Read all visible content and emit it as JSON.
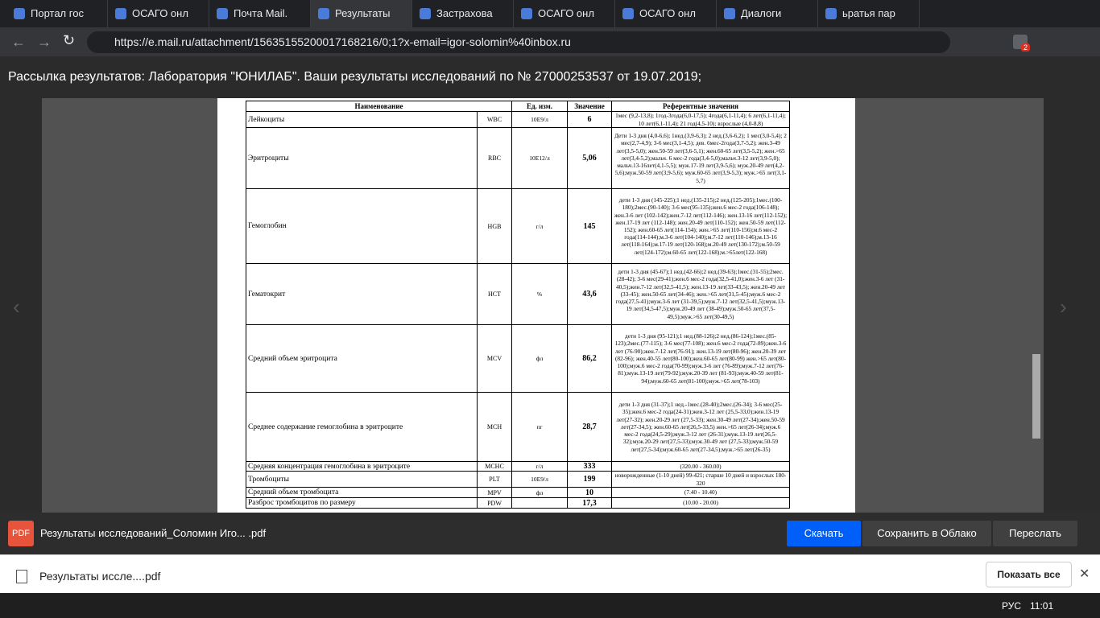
{
  "tabs": [
    "Портал гос",
    "ОСАГО онл",
    "Почта Mail.",
    "Результаты",
    "Застрахова",
    "ОСАГО онл",
    "ОСАГО онл",
    "Диалоги",
    "ьратья пар"
  ],
  "url": "https://e.mail.ru/attachment/15635155200017168216/0;1?x-email=igor-solomin%40inbox.ru",
  "extension_badge": "2",
  "subject": "Рассылка результатов: Лаборатория \"ЮНИЛАБ\". Ваши результаты исследований по № 27000253537 от 19.07.2019;",
  "table": {
    "header": [
      "Наименование",
      "Ед. изм.",
      "Значение",
      "Референтные значения"
    ],
    "rows": [
      [
        "Лейкоциты",
        "WBC",
        "10E9/л",
        "6",
        "1мес (9,2-13,8); 1год-3года(6,0-17,5); 4года(6,1-11,4); 6 лет(6,1-11,4); 10 лет(6,1-11,4); 21 год(4,5-10); взрослые (4,0-8,8)"
      ],
      [
        "Эритроциты",
        "RBC",
        "10E12/л",
        "5,06",
        "Дети 1-3 дня (4,0-6,6); 1нед.(3,9-6,3); 2 нед.(3,6-6,2); 1 мес(3,0-5,4); 2 мес(2,7-4,9); 3-6 мес(3,1-4,5); дев. 6мес-2года(3,7-5,2); жен.3-49 лет(3,5-5,0); жен.50-59 лет(3,6-5,1); жен.60-65 лет(3,5-5,2); жен.>65 лет(3,4-5,2);мальч. 6 мес-2 года(3,4-5,0);мальч.3-12 лет(3,9-5,0); мальч.13-16лет(4,1-5,5); муж.17-19 лет(3,9-5,6); муж.20-49 лет(4,2-5,6);муж.50-59 лет(3,9-5,6); муж.60-65 лет(3,9-5,3); муж.>65 лет(3,1-5,7)"
      ],
      [
        "Гемоглобин",
        "HGB",
        "г/л",
        "145",
        "дети 1-3 дня (145-225);1 нед.(135-215);2 нед.(125-205);1мес.(100-180);2мес.(90-140); 3-6 мес(95-135);жен.6 мес-2 года(106-148); жен.3-6 лет (102-142);жен.7-12 лет(112-146); жен.13-16 лет(112-152); жен.17-19 лет (112-148); жен.20-49 лет(110-152); жен.50-59 лет(112-152); жен.60-65 лет(114-154); жен.>65 лет(110-156);м.6 мес-2 года(114-144);м.3-6 лет(104-140);м.7-12 лет(110-146);м.13-16 лет(118-164);м.17-19 лет(120-168);м.20-49 лет(130-172);м.50-59 лет(124-172);м.60-65 лет(122-168);м.>65лет(122-168)"
      ],
      [
        "Гематокрит",
        "HCT",
        "%",
        "43,6",
        "дети 1-3 дня (45-67);1 нед.(42-66);2 нед.(39-63);1мес.(31-55);2мес.(28-42); 3-6 мес(29-41);жен.6 мес-2 года(32,5-41,0);жен.3-6 лет (31-40,5);жен.7-12 лет(32,5-41,5); жен.13-19 лет(33-43,5); жен.20-49 лет (33-45); жен.50-65 лет(34-46); жен.>65 лет(31,5-45);муж.6 мес-2 года(27,5-41);муж.3-6 лет (31-39,5);муж.7-12 лет(32,5-41,5);муж.13-19 лет(34,5-47,5);муж.20-49 лет (38-49);муж.50-65 лет(37,5-49,5);муж.>65 лет(30-49,5)"
      ],
      [
        "Средний объем эритроцита",
        "MCV",
        "фл",
        "86,2",
        "дети 1-3 дня (95-121);1 нед.(88-126);2 нед.(86-124);1мес.(85-123);2мес.(77-115); 3-6 мес(77-108); жен.6 мес-2 года(72-89);жен.3-6 лет (76-90);жен.7-12 лет(76-91); жен.13-19 лет(80-96); жен.20-39 лет (82-96); жен.40-55 лет(80-100);жен.60-65 лет(80-99) жен.>65 лет(80-100);муж.6 мес-2 года(70-99);муж.3-6 лет (76-89);муж.7-12 лет(76-81);муж.13-19 лет(79-92);муж.20-39 лет (81-93);муж.40-59 лет(81-94);муж.60-65 лет(81-100);муж.>65 лет(78-103)"
      ],
      [
        "Среднее содержание гемоглобина в эритроците",
        "MCH",
        "пг",
        "28,7",
        "дети 1-3 дня (31-37);1 нед.-1мес.(28-40);2мес.(26-34); 3-6 мес(25-35);жен.6 мес-2 года(24-31);жен.3-12 лет (25,5-33,0);жен.13-19 лет(27-32); жен.20-29 лет (27,5-33); жен.30-49 лет(27-34);жен.50-59 лет(27-34,5); жен.60-65 лет(26,5-33,5) жен.>65 лет(26-34);муж.6 мес-2 года(24,5-29);муж.3-12 лет (26-31);муж.13-19 лет(26,5-32);муж.20-29 лет(27,5-33);муж.30-49 лет (27,5-33);муж.50-59 лет(27,5-34);муж.60-65 лет(27-34,5);муж.>65 лет(26-35)"
      ],
      [
        "Средняя концентрация гемоглобина в эритроците",
        "MCHC",
        "г/л",
        "333",
        "(320.00 - 360.00)"
      ],
      [
        "Тромбоциты",
        "PLT",
        "10E9/л",
        "199",
        "новорожденные (1-10 дней) 99-421; старше 10 дней и взрослых 180-320"
      ],
      [
        "Средний объем тромбоцита",
        "MPV",
        "фл",
        "10",
        "(7.40 - 10.40)"
      ],
      [
        "Разброс тромбоцитов по размеру",
        "PDW",
        null,
        "17,3",
        "(10.00 - 20.00)"
      ]
    ]
  },
  "viewer_bar": {
    "icon": "PDF",
    "file": "Результаты исследований_Соломин Иго... .pdf",
    "buttons": [
      "Скачать",
      "Сохранить в Облако",
      "Переслать"
    ]
  },
  "download_bar": {
    "file": "Результаты иссле....pdf",
    "show_all": "Показать все"
  },
  "taskbar": {
    "lang": "РУС",
    "time": "11:01"
  }
}
